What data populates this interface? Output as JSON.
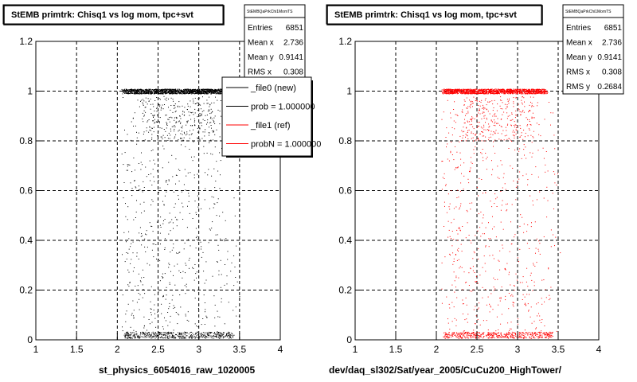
{
  "footer_text": "",
  "chart_data": [
    {
      "type": "scatter",
      "title": "StEMB primtrk: Chisq1 vs log mom, tpc+svt",
      "xlabel": "st_physics_6054016_raw_1020005",
      "ylabel": "",
      "xlim": [
        1,
        4
      ],
      "ylim": [
        0,
        1.2
      ],
      "x_ticks": [
        "1",
        "1.5",
        "2",
        "2.5",
        "3",
        "3.5",
        "4"
      ],
      "y_ticks": [
        "0",
        "0.2",
        "0.4",
        "0.6",
        "0.8",
        "1",
        "1.2"
      ],
      "grid": true,
      "marker_color": "#000000",
      "series": [
        {
          "name": "_file0 (new)",
          "color": "#000000",
          "x_range": [
            2.05,
            3.55
          ],
          "dense_y": 1.0,
          "sparse_y_range": [
            0,
            1.0
          ]
        }
      ],
      "stats": {
        "name": "StEMBQaPrkChi1MomTS",
        "rows": [
          {
            "label": "Entries",
            "value": "6851"
          },
          {
            "label": "Mean x",
            "value": "2.736"
          },
          {
            "label": "Mean y",
            "value": "0.9141"
          },
          {
            "label": "RMS x",
            "value": "0.308"
          }
        ]
      },
      "legend": [
        {
          "label": "_file0 (new)",
          "color": "#000000"
        },
        {
          "label": "prob = 1.000000",
          "color": "#000000"
        },
        {
          "label": "_file1 (ref)",
          "color": "#ff0000"
        },
        {
          "label": "probN = 1.000000",
          "color": "#ff0000"
        }
      ]
    },
    {
      "type": "scatter",
      "title": "StEMB primtrk: Chisq1 vs log mom, tpc+svt",
      "xlabel": "dev/daq_sl302/Sat/year_2005/CuCu200_HighTower/",
      "ylabel": "",
      "xlim": [
        1,
        4
      ],
      "ylim": [
        0,
        1.2
      ],
      "x_ticks": [
        "1",
        "1.5",
        "2",
        "2.5",
        "3",
        "3.5",
        "4"
      ],
      "y_ticks": [
        "0",
        "0.2",
        "0.4",
        "0.6",
        "0.8",
        "1",
        "1.2"
      ],
      "grid": true,
      "marker_color": "#ff0000",
      "series": [
        {
          "name": "_file1 (ref)",
          "color": "#ff0000",
          "x_range": [
            2.05,
            3.55
          ],
          "dense_y": 1.0,
          "sparse_y_range": [
            0,
            1.0
          ]
        }
      ],
      "stats": {
        "name": "StEMBQaPrkChi1MomTS",
        "rows": [
          {
            "label": "Entries",
            "value": "6851"
          },
          {
            "label": "Mean x",
            "value": "2.736"
          },
          {
            "label": "Mean y",
            "value": "0.9141"
          },
          {
            "label": "RMS x",
            "value": "0.308"
          },
          {
            "label": "RMS y",
            "value": "0.2684"
          }
        ]
      }
    }
  ]
}
